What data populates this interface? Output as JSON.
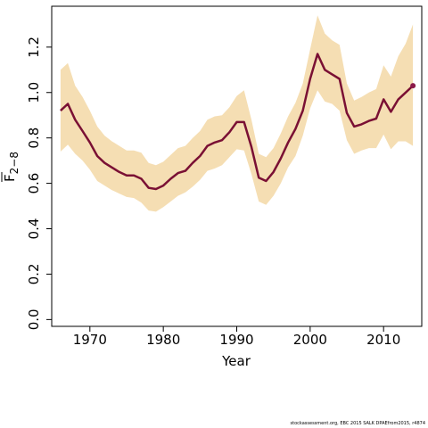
{
  "chart_data": {
    "type": "line",
    "title": "",
    "xlabel": "Year",
    "ylabel_main": "F",
    "ylabel_sub": "2−8",
    "x_ticks": [
      1970,
      1980,
      1990,
      2000,
      2010
    ],
    "y_ticks": [
      "0.0",
      "0.2",
      "0.4",
      "0.6",
      "0.8",
      "1.0",
      "1.2"
    ],
    "xlim": [
      1964.8,
      2015.2
    ],
    "ylim": [
      -0.03,
      1.38
    ],
    "colors": {
      "line": "#7a1034",
      "band": "#f5deb3",
      "last_point": "#8b1a4a"
    },
    "grid": false,
    "series": [
      {
        "x": [
          1966,
          1967,
          1968,
          1969,
          1970,
          1971,
          1972,
          1973,
          1974,
          1975,
          1976,
          1977,
          1978,
          1979,
          1980,
          1981,
          1982,
          1983,
          1984,
          1985,
          1986,
          1987,
          1988,
          1989,
          1990,
          1991,
          1992,
          1993,
          1994,
          1995,
          1996,
          1997,
          1998,
          1999,
          2000,
          2001,
          2002,
          2003,
          2004,
          2005,
          2006,
          2007,
          2008,
          2009,
          2010,
          2011,
          2012,
          2013,
          2014
        ],
        "values": [
          0.92,
          0.95,
          0.88,
          0.83,
          0.78,
          0.72,
          0.69,
          0.67,
          0.65,
          0.635,
          0.635,
          0.62,
          0.58,
          0.575,
          0.59,
          0.62,
          0.645,
          0.655,
          0.69,
          0.72,
          0.765,
          0.78,
          0.79,
          0.825,
          0.87,
          0.87,
          0.76,
          0.625,
          0.61,
          0.65,
          0.71,
          0.78,
          0.84,
          0.92,
          1.06,
          1.17,
          1.1,
          1.08,
          1.06,
          0.91,
          0.85,
          0.86,
          0.875,
          0.885,
          0.97,
          0.915,
          0.97,
          1.0,
          1.03
        ],
        "lower": [
          0.74,
          0.77,
          0.73,
          0.7,
          0.66,
          0.61,
          0.59,
          0.57,
          0.555,
          0.54,
          0.535,
          0.515,
          0.48,
          0.475,
          0.495,
          0.52,
          0.545,
          0.56,
          0.585,
          0.615,
          0.655,
          0.665,
          0.68,
          0.715,
          0.75,
          0.745,
          0.64,
          0.52,
          0.505,
          0.545,
          0.6,
          0.67,
          0.72,
          0.81,
          0.93,
          1.01,
          0.96,
          0.95,
          0.92,
          0.79,
          0.73,
          0.745,
          0.755,
          0.755,
          0.815,
          0.75,
          0.785,
          0.785,
          0.765
        ],
        "upper": [
          1.1,
          1.13,
          1.03,
          0.98,
          0.92,
          0.85,
          0.81,
          0.785,
          0.765,
          0.745,
          0.745,
          0.735,
          0.69,
          0.68,
          0.695,
          0.725,
          0.755,
          0.765,
          0.8,
          0.83,
          0.88,
          0.895,
          0.9,
          0.935,
          0.985,
          1.01,
          0.88,
          0.73,
          0.715,
          0.755,
          0.82,
          0.895,
          0.955,
          1.04,
          1.19,
          1.34,
          1.26,
          1.23,
          1.21,
          1.04,
          0.965,
          0.98,
          1.0,
          1.015,
          1.12,
          1.07,
          1.16,
          1.215,
          1.3
        ]
      }
    ],
    "last_point": {
      "x": 2014,
      "y": 1.03
    }
  },
  "footer_text": "stockassessment.org, EBC 2015 SALK DPAEfrom2015, r4874"
}
